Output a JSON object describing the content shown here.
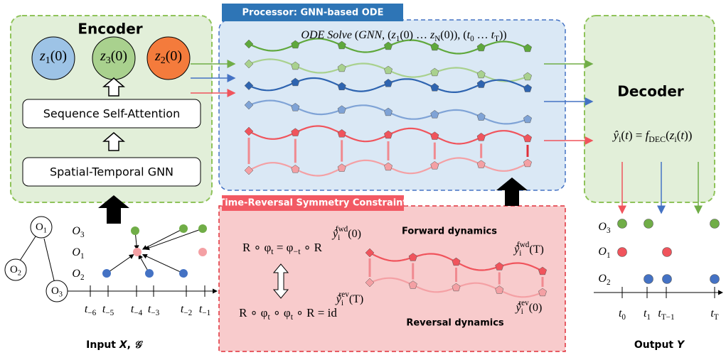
{
  "encoder": {
    "title": "Encoder",
    "latents": [
      [
        {
          "i": "z"
        },
        {
          "sub": "1"
        },
        "(0)"
      ],
      [
        {
          "i": "z"
        },
        {
          "sub": "3"
        },
        "(0)"
      ],
      [
        {
          "i": "z"
        },
        {
          "sub": "2"
        },
        "(0)"
      ]
    ],
    "attention": "Sequence Self-Attention",
    "gnn": "Spatial-Temporal GNN"
  },
  "processor": {
    "title": "Processor: GNN-based ODE",
    "formula": [
      {
        "i": "ODE Solve"
      },
      " (",
      {
        "i": "GNN"
      },
      ", (",
      {
        "i": "z"
      },
      {
        "sub": "1"
      },
      "(0) … ",
      {
        "i": "z"
      },
      {
        "sub": "N"
      },
      "(0)), (",
      {
        "i": "t"
      },
      {
        "sub": "0"
      },
      " … ",
      {
        "i": "t"
      },
      {
        "sub": "T"
      },
      "))"
    ]
  },
  "decoder": {
    "title": "Decoder",
    "formula": [
      {
        "i": "ŷ"
      },
      {
        "sub": "i"
      },
      "(",
      {
        "i": "t"
      },
      ") = ",
      {
        "i": "f"
      },
      {
        "sub": "DEC"
      },
      "(",
      {
        "i": "z"
      },
      {
        "sub": "i"
      },
      "(",
      {
        "i": "t"
      },
      "))"
    ]
  },
  "constraint": {
    "title": "Time-Reversal Symmetry Constraint",
    "equation_1": [
      "R ∘ φ",
      {
        "sub": "t"
      },
      " = φ",
      {
        "sub": "−t"
      },
      " ∘ R"
    ],
    "equation_2": [
      "R ∘ φ",
      {
        "sub": "t"
      },
      " ∘ φ",
      {
        "sub": "t"
      },
      " ∘ R = id"
    ],
    "forward": "Forward dynamics",
    "reversal": "Reversal dynamics",
    "fwd_start": [
      {
        "i": "ŷ"
      },
      {
        "sub": "i"
      },
      {
        "sup": "fwd"
      },
      "(0)"
    ],
    "fwd_end": [
      {
        "i": "ŷ"
      },
      {
        "sub": "i"
      },
      {
        "sup": "fwd"
      },
      "(T)"
    ],
    "rev_start": [
      {
        "i": "ŷ"
      },
      {
        "sub": "i"
      },
      {
        "sup": "rev"
      },
      "(T)"
    ],
    "rev_end": [
      {
        "i": "ŷ"
      },
      {
        "sub": "i"
      },
      {
        "sup": "rev"
      },
      "(0)"
    ]
  },
  "input": {
    "caption": [
      "Input ",
      {
        "i": "X"
      },
      ", ",
      {
        "i": "𝒢"
      }
    ],
    "graph_nodes": [
      [
        "O",
        {
          "sub": "1"
        }
      ],
      [
        "O",
        {
          "sub": "2"
        }
      ],
      [
        "O",
        {
          "sub": "3"
        }
      ]
    ],
    "rows": [
      [
        {
          "i": "O"
        },
        {
          "sub": "3"
        }
      ],
      [
        {
          "i": "O"
        },
        {
          "sub": "1"
        }
      ],
      [
        {
          "i": "O"
        },
        {
          "sub": "2"
        }
      ]
    ],
    "times": [
      [
        {
          "i": "t"
        },
        {
          "sub": "−6"
        }
      ],
      [
        {
          "i": "t"
        },
        {
          "sub": "−5"
        }
      ],
      [
        {
          "i": "t"
        },
        {
          "sub": "−4"
        }
      ],
      [
        {
          "i": "t"
        },
        {
          "sub": "−3"
        }
      ],
      [
        {
          "i": "t"
        },
        {
          "sub": "−2"
        }
      ],
      [
        {
          "i": "t"
        },
        {
          "sub": "−1"
        }
      ]
    ]
  },
  "output": {
    "caption": [
      "Output ",
      {
        "i": "Y"
      }
    ],
    "rows": [
      [
        {
          "i": "O"
        },
        {
          "sub": "3"
        }
      ],
      [
        {
          "i": "O"
        },
        {
          "sub": "1"
        }
      ],
      [
        {
          "i": "O"
        },
        {
          "sub": "2"
        }
      ]
    ],
    "times": [
      [
        {
          "i": "t"
        },
        {
          "sub": "0"
        }
      ],
      [
        {
          "i": "t"
        },
        {
          "sub": "1"
        }
      ],
      [
        {
          "i": "t"
        },
        {
          "sub": "T−1"
        }
      ],
      [
        {
          "i": "t"
        },
        {
          "sub": "T"
        }
      ]
    ]
  }
}
